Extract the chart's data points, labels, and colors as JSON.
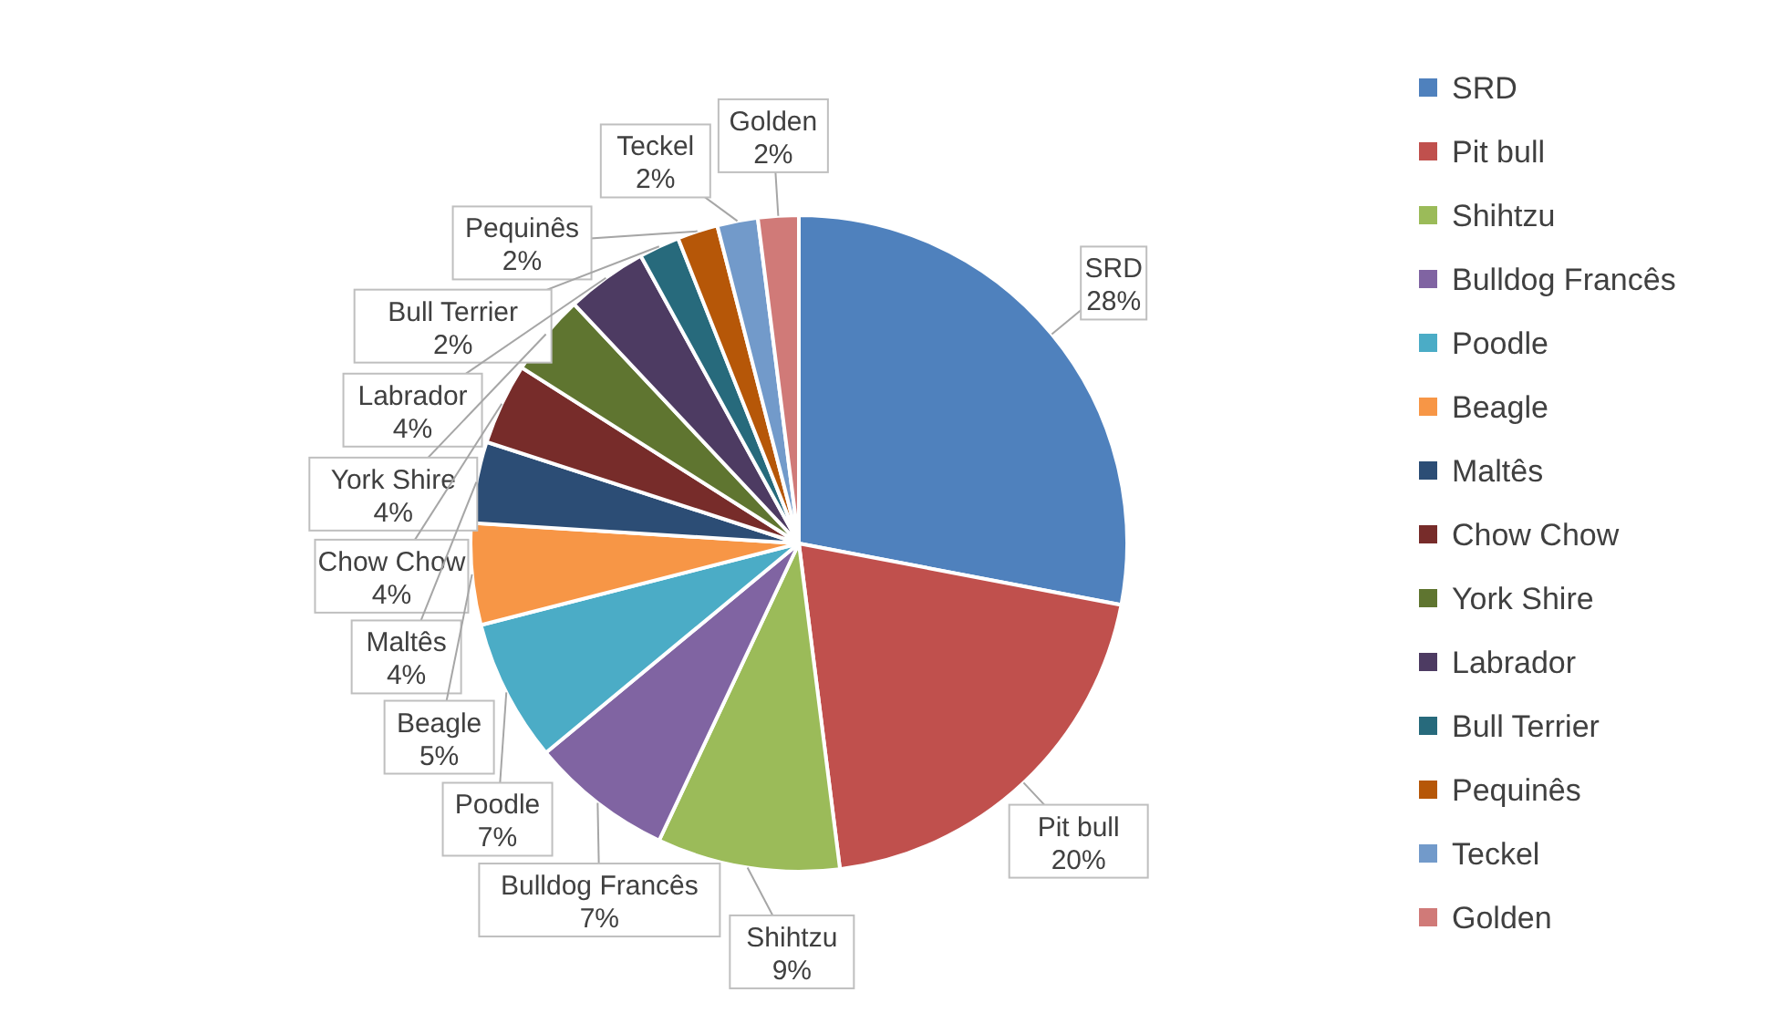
{
  "chart_data": {
    "type": "pie",
    "categories": [
      "SRD",
      "Pit bull",
      "Shihtzu",
      "Bulldog Francês",
      "Poodle",
      "Beagle",
      "Maltês",
      "Chow Chow",
      "York Shire",
      "Labrador",
      "Bull Terrier",
      "Pequinês",
      "Teckel",
      "Golden"
    ],
    "values": [
      28,
      20,
      9,
      7,
      7,
      5,
      4,
      4,
      4,
      4,
      2,
      2,
      2,
      2
    ],
    "value_labels": [
      "28%",
      "20%",
      "9%",
      "7%",
      "7%",
      "5%",
      "4%",
      "4%",
      "4%",
      "4%",
      "2%",
      "2%",
      "2%",
      "2%"
    ],
    "colors": [
      "#4f81bd",
      "#c0504d",
      "#9bbb59",
      "#8064a2",
      "#4bacc6",
      "#f79646",
      "#2c4d75",
      "#772c2a",
      "#5f7530",
      "#4d3b62",
      "#276a7c",
      "#b65708",
      "#729aca",
      "#d07a78"
    ],
    "legend": "right"
  }
}
